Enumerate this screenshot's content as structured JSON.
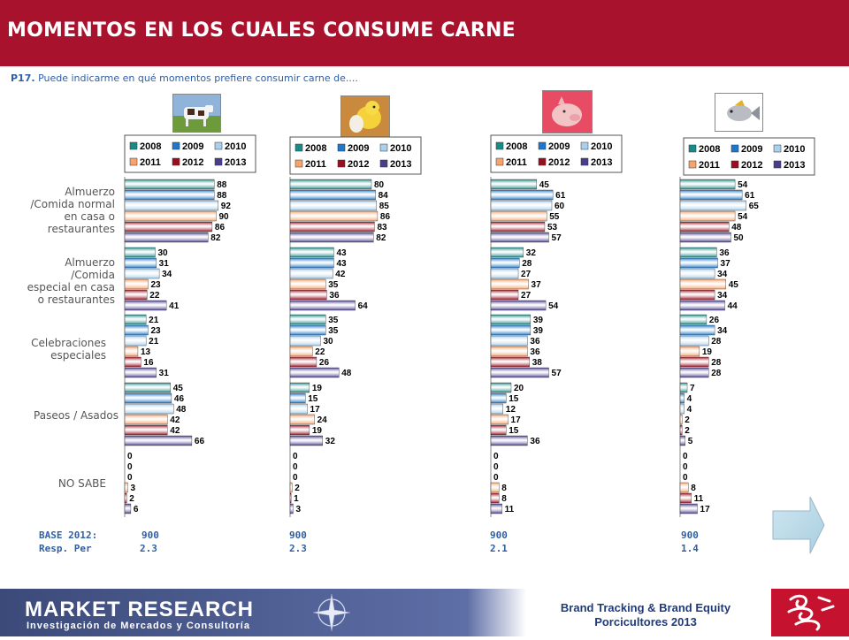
{
  "header": {
    "title": "MOMENTOS EN LOS CUALES CONSUME CARNE"
  },
  "question": {
    "number": "P17.",
    "text": "Puede indicarme en qué momentos prefiere consumir carne de...."
  },
  "legend": {
    "years": [
      "2008",
      "2009",
      "2010",
      "2011",
      "2012",
      "2013"
    ]
  },
  "colors": {
    "2008": "#1a8a86",
    "2009": "#1f77c9",
    "2010": "#a9d0ec",
    "2011": "#f7a36b",
    "2012": "#9a0f1f",
    "2013": "#4b3c8c",
    "header": "#a8122d",
    "text_blue": "#2f5fa2"
  },
  "categories": [
    "Almuerzo /Comida normal en casa o restaurantes",
    "Almuerzo /Comida especial en casa o restaurantes",
    "Celebraciones especiales",
    "Paseos / Asados",
    "NO SABE"
  ],
  "category_lines": [
    [
      "Almuerzo",
      "/Comida normal",
      "en casa o",
      "restaurantes"
    ],
    [
      "Almuerzo",
      "/Comida",
      "especial en casa",
      "o restaurantes"
    ],
    [
      "Celebraciones",
      "especiales"
    ],
    [
      "Paseos / Asados"
    ],
    [
      "NO SABE"
    ]
  ],
  "chart_data": [
    {
      "type": "bar",
      "meat_icon": "cow-photo",
      "categories": [
        "Almuerzo /Comida normal en casa o restaurantes",
        "Almuerzo /Comida especial en casa o restaurantes",
        "Celebraciones especiales",
        "Paseos / Asados",
        "NO SABE"
      ],
      "series": [
        {
          "name": "2008",
          "values": [
            88,
            30,
            21,
            45,
            0
          ]
        },
        {
          "name": "2009",
          "values": [
            88,
            31,
            23,
            46,
            0
          ]
        },
        {
          "name": "2010",
          "values": [
            92,
            34,
            21,
            48,
            0
          ]
        },
        {
          "name": "2011",
          "values": [
            90,
            23,
            13,
            42,
            3
          ]
        },
        {
          "name": "2012",
          "values": [
            86,
            22,
            16,
            42,
            2
          ]
        },
        {
          "name": "2013",
          "values": [
            82,
            41,
            31,
            66,
            6
          ]
        }
      ],
      "base_2012": "900",
      "resp_per": "2.3"
    },
    {
      "type": "bar",
      "meat_icon": "chick-egg-photo",
      "categories": [
        "Almuerzo /Comida normal en casa o restaurantes",
        "Almuerzo /Comida especial en casa o restaurantes",
        "Celebraciones especiales",
        "Paseos / Asados",
        "NO SABE"
      ],
      "series": [
        {
          "name": "2008",
          "values": [
            80,
            43,
            35,
            19,
            0
          ]
        },
        {
          "name": "2009",
          "values": [
            84,
            43,
            35,
            15,
            0
          ]
        },
        {
          "name": "2010",
          "values": [
            85,
            42,
            30,
            17,
            0
          ]
        },
        {
          "name": "2011",
          "values": [
            86,
            35,
            22,
            24,
            2
          ]
        },
        {
          "name": "2012",
          "values": [
            83,
            36,
            26,
            19,
            1
          ]
        },
        {
          "name": "2013",
          "values": [
            82,
            64,
            48,
            32,
            3
          ]
        }
      ],
      "base_2012": "900",
      "resp_per": "2.3"
    },
    {
      "type": "bar",
      "meat_icon": "pig-photo",
      "categories": [
        "Almuerzo /Comida normal en casa o restaurantes",
        "Almuerzo /Comida especial en casa o restaurantes",
        "Celebraciones especiales",
        "Paseos / Asados",
        "NO SABE"
      ],
      "series": [
        {
          "name": "2008",
          "values": [
            45,
            32,
            39,
            20,
            0
          ]
        },
        {
          "name": "2009",
          "values": [
            61,
            28,
            39,
            15,
            0
          ]
        },
        {
          "name": "2010",
          "values": [
            60,
            27,
            36,
            12,
            0
          ]
        },
        {
          "name": "2011",
          "values": [
            55,
            37,
            36,
            17,
            8
          ]
        },
        {
          "name": "2012",
          "values": [
            53,
            27,
            38,
            15,
            8
          ]
        },
        {
          "name": "2013",
          "values": [
            57,
            54,
            57,
            36,
            11
          ]
        }
      ],
      "base_2012": "900",
      "resp_per": "2.1"
    },
    {
      "type": "bar",
      "meat_icon": "fish-photo",
      "categories": [
        "Almuerzo /Comida normal en casa o restaurantes",
        "Almuerzo /Comida especial en casa o restaurantes",
        "Celebraciones especiales",
        "Paseos / Asados",
        "NO SABE"
      ],
      "series": [
        {
          "name": "2008",
          "values": [
            54,
            36,
            26,
            7,
            0
          ]
        },
        {
          "name": "2009",
          "values": [
            61,
            37,
            34,
            4,
            0
          ]
        },
        {
          "name": "2010",
          "values": [
            65,
            34,
            28,
            4,
            0
          ]
        },
        {
          "name": "2011",
          "values": [
            54,
            45,
            19,
            2,
            8
          ]
        },
        {
          "name": "2012",
          "values": [
            48,
            34,
            28,
            2,
            11
          ]
        },
        {
          "name": "2013",
          "values": [
            50,
            44,
            28,
            5,
            17
          ]
        }
      ],
      "base_2012": "900",
      "resp_per": "1.4"
    }
  ],
  "base": {
    "label_base": "BASE 2012:",
    "label_resp": "Resp. Per"
  },
  "footer": {
    "company": "MARKET RESEARCH",
    "company_sub": "Investigación de Mercados y Consultoría",
    "brand_line1": "Brand Tracking & Brand Equity",
    "brand_line2": "Porcicultores 2013"
  },
  "icons": {
    "next": "next-arrow-icon",
    "logo": "pig-logo-icon",
    "compass": "compass-icon"
  }
}
